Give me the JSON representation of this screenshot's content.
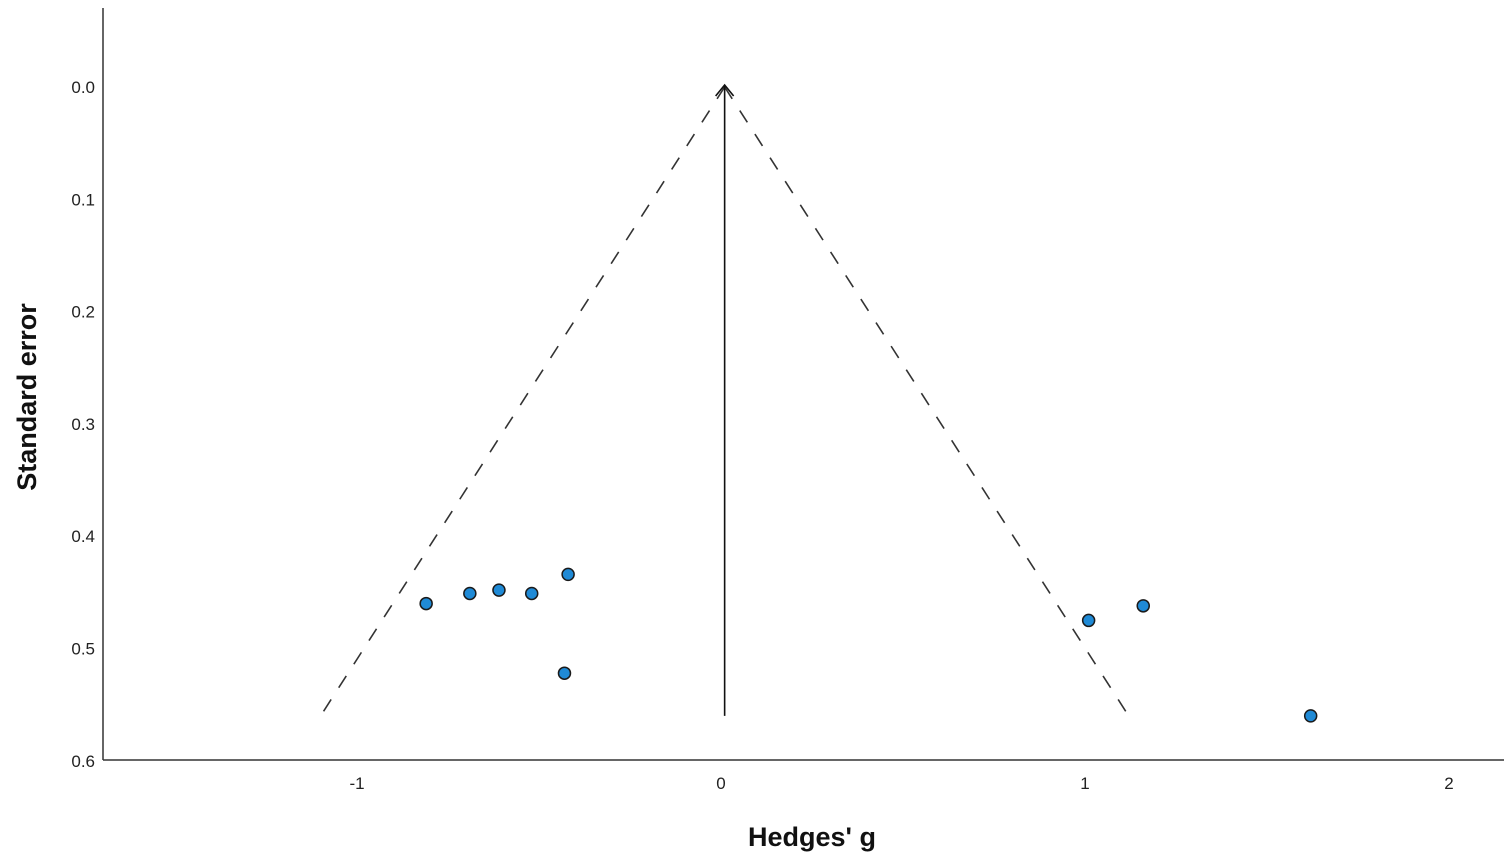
{
  "chart_data": {
    "type": "scatter",
    "title": "",
    "xlabel": "Hedges' g",
    "ylabel": "Standard error",
    "xlim": [
      -1.7,
      2.15
    ],
    "ylim": [
      0.6,
      -0.07
    ],
    "y_axis_inverted": true,
    "x_ticks": [
      -1,
      0,
      1,
      2
    ],
    "x_tick_labels": [
      "-1",
      "0",
      "1",
      "2"
    ],
    "y_ticks": [
      0.0,
      0.1,
      0.2,
      0.3,
      0.4,
      0.5,
      0.6
    ],
    "y_tick_labels": [
      "0.0",
      "0.1",
      "0.2",
      "0.3",
      "0.4",
      "0.5",
      "0.6"
    ],
    "grid": false,
    "legend": "none",
    "series": [
      {
        "marker_color": "#1f8ad6",
        "marker_edge_color": "#1a1a1a",
        "points": [
          {
            "x": -0.81,
            "y": 0.46
          },
          {
            "x": -0.69,
            "y": 0.451
          },
          {
            "x": -0.61,
            "y": 0.448
          },
          {
            "x": -0.52,
            "y": 0.451
          },
          {
            "x": -0.42,
            "y": 0.434
          },
          {
            "x": -0.43,
            "y": 0.522
          },
          {
            "x": 1.01,
            "y": 0.475
          },
          {
            "x": 1.16,
            "y": 0.462
          },
          {
            "x": 1.62,
            "y": 0.56
          }
        ]
      }
    ],
    "reference_line": {
      "x": 0.01,
      "y_from": 0.0,
      "y_to": 0.56,
      "style": "solid-arrow"
    },
    "funnel": {
      "apex": {
        "x": 0.01,
        "y": 0.0
      },
      "left_end": {
        "x": -1.1,
        "y": 0.56
      },
      "right_end": {
        "x": 1.12,
        "y": 0.56
      },
      "style": "dashed"
    }
  }
}
